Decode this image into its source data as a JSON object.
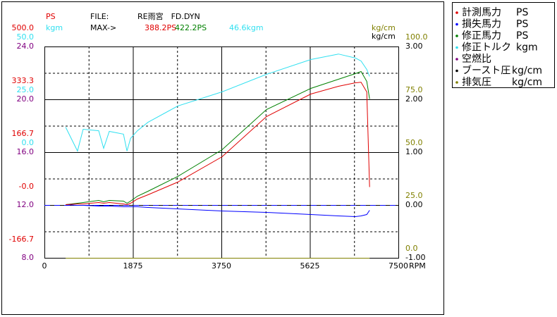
{
  "chart_data": {
    "type": "line",
    "header": {
      "file_label": "FILE:",
      "file": "RE雨宮　FD.DYN",
      "max_label": "MAX->",
      "max": [
        "388.2PS",
        "422.2PS",
        "46.6kgm"
      ]
    },
    "xlabel": "RPM",
    "x": [
      450,
      700,
      820,
      1150,
      1255,
      1375,
      1675,
      1750,
      1825,
      1970,
      2195,
      2825,
      3765,
      4705,
      5645,
      6230,
      6590,
      6710,
      6830,
      6890
    ],
    "xlim": [
      0,
      7500
    ],
    "xticks": [
      0,
      1875,
      3750,
      5625,
      7500
    ],
    "ylabel": "PS",
    "ylim": [
      -166.7,
      500
    ],
    "yticks": [
      -166.7,
      {
        "value": 0,
        "label": "-0.0"
      },
      166.7,
      333.3,
      {
        "value": 500,
        "label": "500.0"
      }
    ],
    "y2label": "kgm",
    "y2lim": [
      -50,
      50
    ],
    "y2ticks": [
      {
        "value": 0,
        "label": "0.0"
      },
      {
        "value": 25,
        "label": "25.0"
      },
      {
        "value": 50,
        "label": "50.0"
      }
    ],
    "y3lim": [
      8,
      24
    ],
    "y3ticks": [
      {
        "value": 8,
        "label": "8.0"
      },
      {
        "value": 12,
        "label": "12.0"
      },
      {
        "value": 16,
        "label": "16.0"
      },
      {
        "value": 20,
        "label": "20.0"
      },
      {
        "value": 24,
        "label": "24.0"
      }
    ],
    "y4label": "kg/cm",
    "y4lim": [
      -1,
      3
    ],
    "y4ticks": [
      {
        "value": -1,
        "label": "-1.00"
      },
      {
        "value": 0,
        "label": "0.00"
      },
      {
        "value": 1,
        "label": "1.00"
      },
      {
        "value": 2,
        "label": "2.00"
      },
      {
        "value": 3,
        "label": "3.00"
      }
    ],
    "y5label": "kg/cm",
    "y5lim": [
      0,
      100
    ],
    "y5ticks": [
      {
        "value": 0,
        "label": "0.0"
      },
      {
        "value": 25,
        "label": "25.0"
      },
      {
        "value": 50,
        "label": "50.0"
      },
      {
        "value": 75,
        "label": "75.0"
      },
      {
        "value": 100,
        "label": "100.0"
      }
    ],
    "grid": true,
    "series": [
      {
        "name": "計測馬力",
        "unit": "PS",
        "color": "#e00000",
        "axis": "y",
        "values": [
          2.2,
          4.4,
          4.4,
          8.9,
          6.7,
          8.9,
          4.4,
          2.2,
          6.7,
          20,
          33.3,
          73.3,
          153.3,
          280,
          351.1,
          375.6,
          386.7,
          388.2,
          357.8,
          57.8
        ]
      },
      {
        "name": "損失馬力",
        "unit": "PS",
        "color": "#0000ff",
        "axis": "y",
        "values": [
          2.2,
          0,
          0,
          -2.2,
          -2.2,
          -2.2,
          -4.4,
          -4.4,
          -4.4,
          -4.4,
          -6.7,
          -11.1,
          -17.8,
          -22.2,
          -28.9,
          -33.3,
          -35.6,
          -33.3,
          -28.9,
          -15.6
        ]
      },
      {
        "name": "修正馬力",
        "unit": "PS",
        "color": "#008000",
        "axis": "y",
        "values": [
          2.2,
          6.7,
          8.9,
          15.6,
          11.1,
          15.6,
          13.3,
          6.7,
          13.3,
          28.9,
          44.4,
          91.1,
          175.6,
          302.2,
          368.9,
          397.8,
          415.6,
          422.2,
          391.1,
          335.6
        ]
      },
      {
        "name": "修正トルク",
        "unit": "kgm",
        "color": "#30e0f0",
        "axis": "y2",
        "values": [
          12.0,
          0.7,
          11.0,
          10.3,
          2.0,
          10.0,
          8.7,
          0.7,
          6.7,
          10.3,
          14.3,
          22.0,
          28.7,
          37.0,
          44.0,
          46.6,
          44.7,
          43.3,
          39.3,
          36.0
        ]
      },
      {
        "name": "空燃比",
        "color": "#800080",
        "axis": "y3",
        "values": [
          null,
          null,
          null,
          null,
          null,
          null,
          null,
          null,
          null,
          null,
          null,
          null,
          null,
          null,
          null,
          null,
          null,
          null,
          null,
          null
        ]
      },
      {
        "name": "ブースト圧",
        "unit": "kg/cm",
        "color": "#000000",
        "axis": "y4",
        "values": [
          null,
          null,
          null,
          null,
          null,
          null,
          null,
          null,
          null,
          null,
          null,
          null,
          null,
          null,
          null,
          null,
          null,
          null,
          null,
          null
        ]
      },
      {
        "name": "排気圧",
        "unit": "kg/cm",
        "color": "#808000",
        "axis": "y5",
        "values": [
          0,
          0,
          0,
          0,
          0,
          0,
          0,
          0,
          0,
          0,
          0,
          0,
          0,
          0,
          0,
          0,
          0,
          0,
          0,
          0
        ]
      }
    ]
  }
}
